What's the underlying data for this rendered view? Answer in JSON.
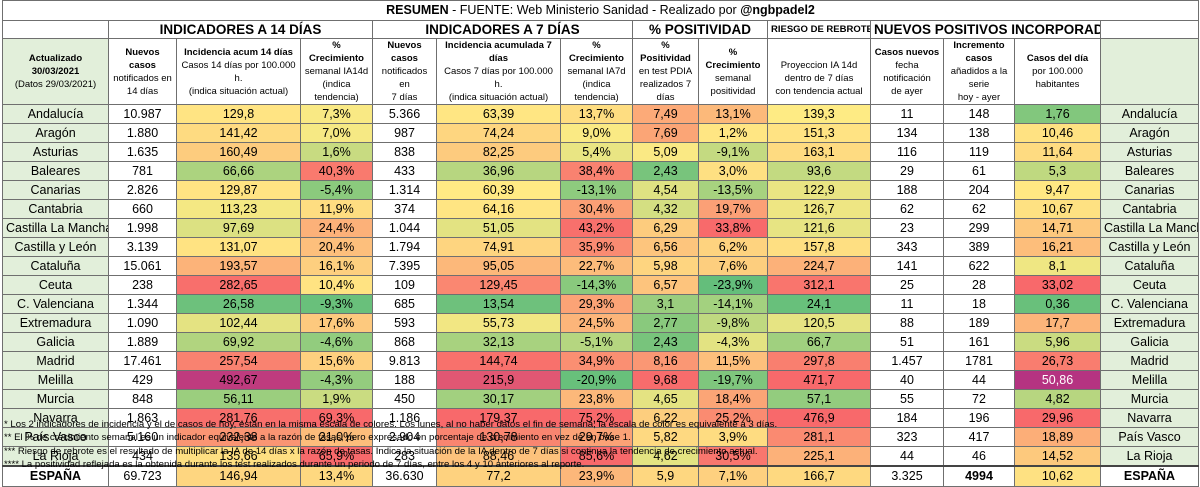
{
  "title": {
    "part1": "RESUMEN",
    "part2": " - FUENTE: Web Ministerio Sanidad  - Realizado por ",
    "handle": "@ngbpadel2"
  },
  "groups": {
    "g14": "INDICADORES A 14 DÍAS",
    "g7": "INDICADORES A 7 DÍAS",
    "gpos": "% POSITIVIDAD",
    "griesgo": "RIESGO DE REBROTE",
    "gnuevos": "NUEVOS POSITIVOS INCORPORADOS"
  },
  "info": {
    "updated": "Actualizado 30/03/2021",
    "data": "(Datos 29/03/2021)"
  },
  "headers": [
    {
      "l1": "Nuevos casos",
      "l2": "notificados en",
      "l3": "14 días"
    },
    {
      "l1": "Incidencia acum 14 días",
      "l2": "Casos 14 días por 100.000 h.",
      "l3": "(indica situación actual)"
    },
    {
      "l1": "% Crecimiento",
      "l2": "semanal IA14d",
      "l3": "(indica tendencia)"
    },
    {
      "l1": "Nuevos casos",
      "l2": "notificados en",
      "l3": "7 días"
    },
    {
      "l1": "Incidencia acumulada 7 días",
      "l2": "Casos 7 días por 100.000 h.",
      "l3": "(indica situación actual)"
    },
    {
      "l1": "% Crecimiento",
      "l2": "semanal IA7d",
      "l3": "(indica tendencia)"
    },
    {
      "l1": "% Positividad",
      "l2": "en test PDIA",
      "l3": "realizados 7 días"
    },
    {
      "l1": "% Crecimiento",
      "l2": "semanal",
      "l3": "positividad"
    },
    {
      "l1": "",
      "l2": "Proyeccion IA 14d",
      "l3": "dentro de 7 días",
      "l4": "con tendencia actual"
    },
    {
      "l1": "Casos nuevos",
      "l2": "fecha notificación",
      "l3": "de ayer"
    },
    {
      "l1": "Incremento casos",
      "l2": "añadidos a la serie",
      "l3": "hoy - ayer"
    },
    {
      "l1": "Casos del día",
      "l2": "por 100.000",
      "l3": "habitantes"
    }
  ],
  "rows": [
    {
      "name": "Andalucía",
      "v": [
        "10.987",
        "129,8",
        "7,3%",
        "5.366",
        "63,39",
        "13,7%",
        "7,49",
        "13,1%",
        "139,3",
        "11",
        "148",
        "1,76"
      ]
    },
    {
      "name": "Aragón",
      "v": [
        "1.880",
        "141,42",
        "7,0%",
        "987",
        "74,24",
        "9,0%",
        "7,69",
        "1,2%",
        "151,3",
        "134",
        "138",
        "10,46"
      ]
    },
    {
      "name": "Asturias",
      "v": [
        "1.635",
        "160,49",
        "1,6%",
        "838",
        "82,25",
        "5,4%",
        "5,09",
        "-9,1%",
        "163,1",
        "116",
        "119",
        "11,64"
      ]
    },
    {
      "name": "Baleares",
      "v": [
        "781",
        "66,66",
        "40,3%",
        "433",
        "36,96",
        "38,4%",
        "2,43",
        "3,0%",
        "93,6",
        "29",
        "61",
        "5,3"
      ]
    },
    {
      "name": "Canarias",
      "v": [
        "2.826",
        "129,87",
        "-5,4%",
        "1.314",
        "60,39",
        "-13,1%",
        "4,54",
        "-13,5%",
        "122,9",
        "188",
        "204",
        "9,47"
      ]
    },
    {
      "name": "Cantabria",
      "v": [
        "660",
        "113,23",
        "11,9%",
        "374",
        "64,16",
        "30,4%",
        "4,32",
        "19,7%",
        "126,7",
        "62",
        "62",
        "10,67"
      ]
    },
    {
      "name": "Castilla La Mancha",
      "v": [
        "1.998",
        "97,69",
        "24,4%",
        "1.044",
        "51,05",
        "43,2%",
        "6,29",
        "33,8%",
        "121,6",
        "23",
        "299",
        "14,71"
      ]
    },
    {
      "name": "Castilla y León",
      "v": [
        "3.139",
        "131,07",
        "20,4%",
        "1.794",
        "74,91",
        "35,9%",
        "6,56",
        "6,2%",
        "157,8",
        "343",
        "389",
        "16,21"
      ]
    },
    {
      "name": "Cataluña",
      "v": [
        "15.061",
        "193,57",
        "16,1%",
        "7.395",
        "95,05",
        "22,7%",
        "5,98",
        "7,6%",
        "224,7",
        "141",
        "622",
        "8,1"
      ]
    },
    {
      "name": "Ceuta",
      "v": [
        "238",
        "282,65",
        "10,4%",
        "109",
        "129,45",
        "-14,3%",
        "6,57",
        "-23,9%",
        "312,1",
        "25",
        "28",
        "33,02"
      ]
    },
    {
      "name": "C. Valenciana",
      "v": [
        "1.344",
        "26,58",
        "-9,3%",
        "685",
        "13,54",
        "29,3%",
        "3,1",
        "-14,1%",
        "24,1",
        "11",
        "18",
        "0,36"
      ]
    },
    {
      "name": "Extremadura",
      "v": [
        "1.090",
        "102,44",
        "17,6%",
        "593",
        "55,73",
        "24,5%",
        "2,77",
        "-9,8%",
        "120,5",
        "88",
        "189",
        "17,7"
      ]
    },
    {
      "name": "Galicia",
      "v": [
        "1.889",
        "69,92",
        "-4,6%",
        "868",
        "32,13",
        "-5,1%",
        "2,43",
        "-4,3%",
        "66,7",
        "51",
        "161",
        "5,96"
      ]
    },
    {
      "name": "Madrid",
      "v": [
        "17.461",
        "257,54",
        "15,6%",
        "9.813",
        "144,74",
        "34,9%",
        "8,16",
        "11,5%",
        "297,8",
        "1.457",
        "1781",
        "26,73"
      ]
    },
    {
      "name": "Melilla",
      "v": [
        "429",
        "492,67",
        "-4,3%",
        "188",
        "215,9",
        "-20,9%",
        "9,68",
        "-19,7%",
        "471,7",
        "40",
        "44",
        "50,86"
      ]
    },
    {
      "name": "Murcia",
      "v": [
        "848",
        "56,11",
        "1,9%",
        "450",
        "30,17",
        "23,8%",
        "4,65",
        "18,4%",
        "57,1",
        "55",
        "72",
        "4,82"
      ]
    },
    {
      "name": "Navarra",
      "v": [
        "1.863",
        "281,76",
        "69,3%",
        "1.186",
        "179,37",
        "75,2%",
        "6,22",
        "25,2%",
        "476,9",
        "184",
        "196",
        "29,96"
      ]
    },
    {
      "name": "País Vasco",
      "v": [
        "5.160",
        "232,38",
        "21,0%",
        "2.904",
        "130,78",
        "29,7%",
        "5,82",
        "3,9%",
        "281,1",
        "323",
        "417",
        "18,89"
      ]
    },
    {
      "name": "La Rioja",
      "v": [
        "434",
        "135,66",
        "65,9%",
        "283",
        "88,46",
        "85,6%",
        "4,62",
        "30,5%",
        "225,1",
        "44",
        "46",
        "14,52"
      ]
    }
  ],
  "total": {
    "name": "ESPAÑA",
    "v": [
      "69.723",
      "146,94",
      "13,4%",
      "36.630",
      "77,2",
      "23,9%",
      "5,9",
      "7,1%",
      "166,7",
      "3.325",
      "4994",
      "10,62"
    ]
  },
  "colors": {
    "header_green": "#e2efda",
    "scale_green": "#63be7b",
    "scale_yellow": "#ffeb84",
    "scale_red": "#f8696b",
    "scale_purple": "#9b1f8a"
  },
  "notes": [
    "* Los 2 indicadores de incidencia y el de casos de hoy, están en la misma escala de colores. Los lunes, al no haber datos el fin de semana, la escala de color es equivalente a 3 días.",
    "** El % de crecimiento semanal es un indicador equivalente a la razón de tasas, pero expresado en porcentaje de crecimiento en vez de en base 1.",
    "*** Riesgo de rebrote es el resultado de multiplicar la IA de 14 días x la razón de tasas. Indica la situación de la IA dentro de 7 días si continua la tendencia de crecimiento actual.",
    "**** La positividad reflejada es la obtenida durante los test realizados durante un periodo de 7 días, entre los 4 y 10 anteriores al reporte."
  ]
}
